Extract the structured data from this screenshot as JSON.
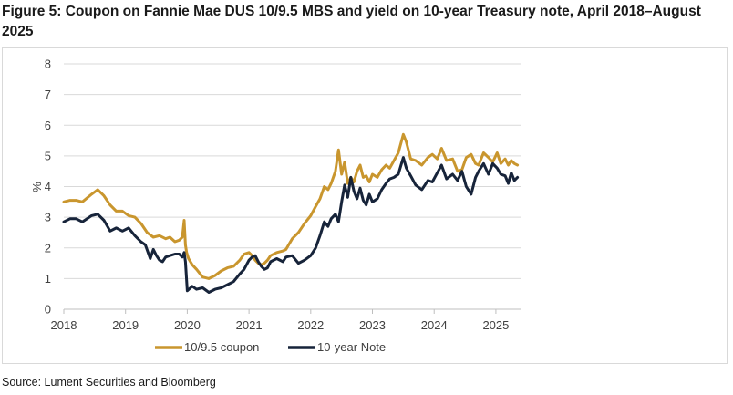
{
  "figure": {
    "title": "Figure 5: Coupon on Fannie Mae DUS 10/9.5 MBS and yield on 10-year Treasury note, April 2018–August 2025",
    "source": "Source: Lument Securities and Bloomberg"
  },
  "chart_data": {
    "type": "line",
    "title": "Coupon on Fannie Mae DUS 10/9.5 MBS and yield on 10-year Treasury note, April 2018–August 2025",
    "xlabel": "",
    "ylabel": "%",
    "xlim": [
      2018.0,
      2025.4
    ],
    "ylim": [
      0,
      8
    ],
    "yticks": [
      0,
      1,
      2,
      3,
      4,
      5,
      6,
      7,
      8
    ],
    "xtick_labels": [
      "2018",
      "2019",
      "2020",
      "2021",
      "2022",
      "2023",
      "2024",
      "2025"
    ],
    "grid": "horizontal",
    "legend_position": "bottom",
    "series": [
      {
        "name": "10/9.5 coupon",
        "color": "#C9962E",
        "x": [
          2018.0,
          2018.1,
          2018.2,
          2018.3,
          2018.45,
          2018.55,
          2018.65,
          2018.75,
          2018.85,
          2018.95,
          2019.05,
          2019.15,
          2019.25,
          2019.35,
          2019.45,
          2019.55,
          2019.65,
          2019.72,
          2019.8,
          2019.87,
          2019.92,
          2019.95,
          2019.97,
          2019.99,
          2020.02,
          2020.08,
          2020.15,
          2020.25,
          2020.35,
          2020.45,
          2020.55,
          2020.65,
          2020.75,
          2020.85,
          2020.92,
          2021.0,
          2021.05,
          2021.1,
          2021.15,
          2021.2,
          2021.25,
          2021.3,
          2021.35,
          2021.45,
          2021.55,
          2021.6,
          2021.7,
          2021.8,
          2021.9,
          2022.0,
          2022.08,
          2022.15,
          2022.22,
          2022.28,
          2022.33,
          2022.4,
          2022.45,
          2022.5,
          2022.55,
          2022.6,
          2022.65,
          2022.7,
          2022.75,
          2022.8,
          2022.85,
          2022.9,
          2022.95,
          2023.0,
          2023.08,
          2023.15,
          2023.22,
          2023.28,
          2023.35,
          2023.42,
          2023.5,
          2023.55,
          2023.62,
          2023.7,
          2023.8,
          2023.9,
          2023.97,
          2024.05,
          2024.12,
          2024.2,
          2024.3,
          2024.38,
          2024.45,
          2024.52,
          2024.6,
          2024.67,
          2024.72,
          2024.8,
          2024.88,
          2024.95,
          2025.02,
          2025.08,
          2025.15,
          2025.2,
          2025.25,
          2025.3,
          2025.35
        ],
        "values": [
          3.5,
          3.55,
          3.55,
          3.5,
          3.75,
          3.9,
          3.7,
          3.4,
          3.2,
          3.2,
          3.05,
          3.0,
          2.8,
          2.5,
          2.35,
          2.4,
          2.3,
          2.35,
          2.2,
          2.25,
          2.35,
          2.9,
          2.1,
          1.85,
          1.65,
          1.45,
          1.3,
          1.05,
          1.0,
          1.1,
          1.25,
          1.35,
          1.4,
          1.6,
          1.8,
          1.85,
          1.75,
          1.6,
          1.5,
          1.45,
          1.5,
          1.6,
          1.75,
          1.85,
          1.9,
          1.95,
          2.3,
          2.5,
          2.8,
          3.05,
          3.35,
          3.6,
          4.0,
          3.9,
          4.1,
          4.5,
          5.2,
          4.4,
          4.8,
          4.1,
          4.3,
          4.15,
          4.5,
          4.7,
          4.3,
          4.35,
          4.15,
          4.4,
          4.3,
          4.55,
          4.7,
          4.6,
          4.85,
          5.1,
          5.7,
          5.45,
          4.9,
          4.85,
          4.7,
          4.95,
          5.05,
          4.9,
          5.25,
          4.85,
          4.9,
          4.5,
          4.55,
          4.95,
          5.05,
          4.75,
          4.7,
          5.1,
          4.95,
          4.8,
          5.1,
          4.75,
          4.9,
          4.7,
          4.85,
          4.75,
          4.7
        ]
      },
      {
        "name": "10-year Note",
        "color": "#17243A",
        "x": [
          2018.0,
          2018.1,
          2018.2,
          2018.3,
          2018.45,
          2018.55,
          2018.65,
          2018.75,
          2018.85,
          2018.95,
          2019.05,
          2019.15,
          2019.25,
          2019.32,
          2019.4,
          2019.45,
          2019.5,
          2019.55,
          2019.6,
          2019.65,
          2019.72,
          2019.8,
          2019.87,
          2019.92,
          2019.95,
          2019.97,
          2020.0,
          2020.08,
          2020.15,
          2020.25,
          2020.35,
          2020.45,
          2020.55,
          2020.65,
          2020.75,
          2020.85,
          2020.92,
          2021.0,
          2021.05,
          2021.1,
          2021.15,
          2021.2,
          2021.25,
          2021.3,
          2021.35,
          2021.45,
          2021.55,
          2021.6,
          2021.7,
          2021.8,
          2021.9,
          2022.0,
          2022.08,
          2022.15,
          2022.22,
          2022.28,
          2022.33,
          2022.4,
          2022.45,
          2022.5,
          2022.55,
          2022.6,
          2022.65,
          2022.7,
          2022.75,
          2022.8,
          2022.85,
          2022.9,
          2022.95,
          2023.0,
          2023.08,
          2023.15,
          2023.22,
          2023.28,
          2023.35,
          2023.42,
          2023.5,
          2023.55,
          2023.62,
          2023.7,
          2023.8,
          2023.9,
          2023.97,
          2024.05,
          2024.12,
          2024.2,
          2024.3,
          2024.38,
          2024.45,
          2024.52,
          2024.6,
          2024.67,
          2024.72,
          2024.8,
          2024.88,
          2024.95,
          2025.02,
          2025.08,
          2025.15,
          2025.2,
          2025.25,
          2025.3,
          2025.35
        ],
        "values": [
          2.85,
          2.95,
          2.95,
          2.85,
          3.05,
          3.1,
          2.9,
          2.55,
          2.65,
          2.55,
          2.65,
          2.4,
          2.2,
          2.1,
          1.65,
          1.95,
          1.75,
          1.6,
          1.55,
          1.7,
          1.75,
          1.8,
          1.8,
          1.7,
          1.85,
          1.55,
          0.6,
          0.75,
          0.65,
          0.7,
          0.55,
          0.65,
          0.7,
          0.8,
          0.9,
          1.15,
          1.3,
          1.6,
          1.7,
          1.75,
          1.55,
          1.4,
          1.3,
          1.35,
          1.55,
          1.65,
          1.55,
          1.7,
          1.75,
          1.5,
          1.6,
          1.75,
          2.0,
          2.4,
          2.85,
          2.7,
          2.95,
          3.1,
          2.85,
          3.5,
          4.05,
          3.65,
          4.3,
          3.85,
          3.6,
          3.95,
          3.55,
          3.4,
          3.75,
          3.5,
          3.6,
          3.9,
          4.1,
          4.25,
          4.3,
          4.4,
          4.95,
          4.6,
          4.35,
          4.05,
          3.9,
          4.2,
          4.15,
          4.45,
          4.7,
          4.25,
          4.4,
          4.2,
          4.5,
          4.0,
          3.75,
          4.3,
          4.5,
          4.75,
          4.4,
          4.75,
          4.6,
          4.4,
          4.35,
          4.1,
          4.45,
          4.2,
          4.3
        ]
      }
    ]
  }
}
